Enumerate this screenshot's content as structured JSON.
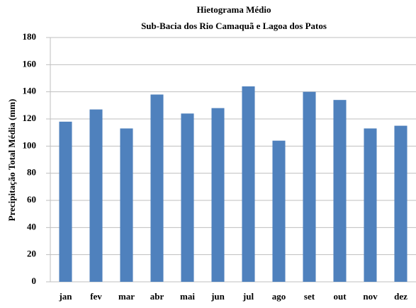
{
  "chart_data": {
    "type": "bar",
    "title": "Hietograma Médio",
    "subtitle": "Sub-Bacia dos Rio Camaquã e Lagoa dos Patos",
    "y_label": "Precipitação Total Média (mm)",
    "categories": [
      "jan",
      "fev",
      "mar",
      "abr",
      "mai",
      "jun",
      "jul",
      "ago",
      "set",
      "out",
      "nov",
      "dez"
    ],
    "values": [
      118,
      127,
      113,
      138,
      124,
      128,
      144,
      104,
      140,
      134,
      113,
      115
    ],
    "color": "#4f81bd",
    "ylim": [
      0,
      180
    ],
    "yticks": [
      0,
      20,
      40,
      60,
      80,
      100,
      120,
      140,
      160,
      180
    ],
    "grid": true
  }
}
